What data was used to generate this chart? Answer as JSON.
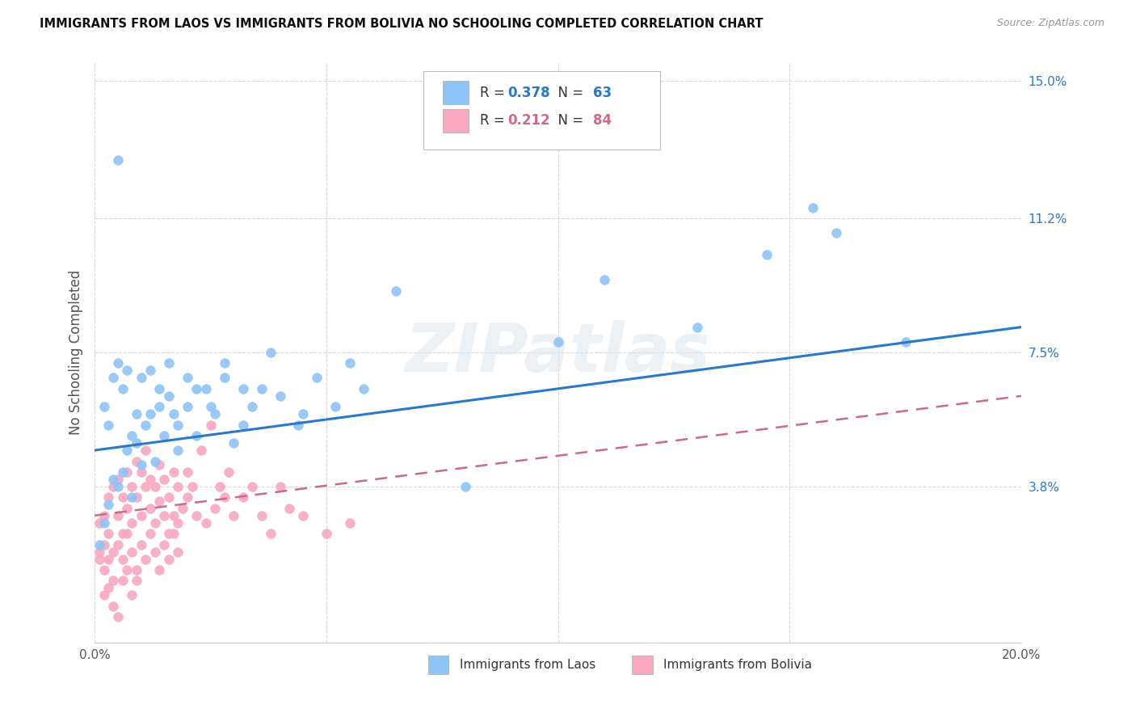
{
  "title": "IMMIGRANTS FROM LAOS VS IMMIGRANTS FROM BOLIVIA NO SCHOOLING COMPLETED CORRELATION CHART",
  "source": "Source: ZipAtlas.com",
  "ylabel": "No Schooling Completed",
  "xlim": [
    0.0,
    0.2
  ],
  "ylim": [
    -0.005,
    0.155
  ],
  "xticks": [
    0.0,
    0.05,
    0.1,
    0.15,
    0.2
  ],
  "xticklabels": [
    "0.0%",
    "",
    "",
    "",
    "20.0%"
  ],
  "ytick_positions": [
    0.038,
    0.075,
    0.112,
    0.15
  ],
  "ytick_labels": [
    "3.8%",
    "7.5%",
    "11.2%",
    "15.0%"
  ],
  "background_color": "#ffffff",
  "grid_color": "#d8d8d8",
  "watermark": "ZIPatlas",
  "laos_color": "#8ec4f8",
  "bolivia_color": "#f9a8c0",
  "laos_line_color": "#2878cc",
  "bolivia_line_color": "#d06888",
  "laos_R": 0.378,
  "laos_N": 63,
  "bolivia_R": 0.212,
  "bolivia_N": 84,
  "laos_line_x": [
    0.0,
    0.2
  ],
  "laos_line_y": [
    0.048,
    0.082
  ],
  "bolivia_line_x": [
    0.0,
    0.2
  ],
  "bolivia_line_y": [
    0.03,
    0.063
  ],
  "laos_scatter_x": [
    0.001,
    0.002,
    0.003,
    0.004,
    0.005,
    0.006,
    0.007,
    0.008,
    0.009,
    0.01,
    0.011,
    0.012,
    0.013,
    0.014,
    0.015,
    0.016,
    0.017,
    0.018,
    0.02,
    0.022,
    0.024,
    0.026,
    0.028,
    0.03,
    0.032,
    0.034,
    0.036,
    0.04,
    0.044,
    0.048,
    0.052,
    0.058,
    0.002,
    0.003,
    0.004,
    0.005,
    0.006,
    0.007,
    0.008,
    0.009,
    0.01,
    0.012,
    0.014,
    0.016,
    0.018,
    0.02,
    0.022,
    0.025,
    0.028,
    0.032,
    0.038,
    0.045,
    0.055,
    0.065,
    0.08,
    0.1,
    0.11,
    0.13,
    0.145,
    0.155,
    0.16,
    0.175,
    0.005
  ],
  "laos_scatter_y": [
    0.022,
    0.028,
    0.033,
    0.04,
    0.038,
    0.042,
    0.048,
    0.035,
    0.05,
    0.044,
    0.055,
    0.058,
    0.045,
    0.06,
    0.052,
    0.063,
    0.058,
    0.048,
    0.06,
    0.052,
    0.065,
    0.058,
    0.068,
    0.05,
    0.055,
    0.06,
    0.065,
    0.063,
    0.055,
    0.068,
    0.06,
    0.065,
    0.06,
    0.055,
    0.068,
    0.072,
    0.065,
    0.07,
    0.052,
    0.058,
    0.068,
    0.07,
    0.065,
    0.072,
    0.055,
    0.068,
    0.065,
    0.06,
    0.072,
    0.065,
    0.075,
    0.058,
    0.072,
    0.092,
    0.038,
    0.078,
    0.095,
    0.082,
    0.102,
    0.115,
    0.108,
    0.078,
    0.128
  ],
  "bolivia_scatter_x": [
    0.001,
    0.001,
    0.002,
    0.002,
    0.003,
    0.003,
    0.004,
    0.004,
    0.005,
    0.005,
    0.006,
    0.006,
    0.007,
    0.007,
    0.008,
    0.008,
    0.009,
    0.009,
    0.01,
    0.01,
    0.011,
    0.011,
    0.012,
    0.012,
    0.013,
    0.013,
    0.014,
    0.014,
    0.015,
    0.015,
    0.016,
    0.016,
    0.017,
    0.017,
    0.018,
    0.018,
    0.019,
    0.02,
    0.02,
    0.021,
    0.022,
    0.023,
    0.024,
    0.025,
    0.026,
    0.027,
    0.028,
    0.029,
    0.03,
    0.032,
    0.034,
    0.036,
    0.038,
    0.04,
    0.042,
    0.045,
    0.05,
    0.055,
    0.002,
    0.003,
    0.004,
    0.005,
    0.006,
    0.007,
    0.008,
    0.009,
    0.001,
    0.002,
    0.003,
    0.004,
    0.005,
    0.006,
    0.007,
    0.008,
    0.009,
    0.01,
    0.011,
    0.012,
    0.013,
    0.014,
    0.015,
    0.016,
    0.017,
    0.018
  ],
  "bolivia_scatter_y": [
    0.028,
    0.018,
    0.022,
    0.03,
    0.025,
    0.035,
    0.02,
    0.038,
    0.03,
    0.04,
    0.025,
    0.035,
    0.032,
    0.042,
    0.028,
    0.038,
    0.035,
    0.045,
    0.03,
    0.042,
    0.038,
    0.048,
    0.032,
    0.04,
    0.028,
    0.038,
    0.034,
    0.044,
    0.03,
    0.04,
    0.025,
    0.035,
    0.03,
    0.042,
    0.028,
    0.038,
    0.032,
    0.035,
    0.042,
    0.038,
    0.03,
    0.048,
    0.028,
    0.055,
    0.032,
    0.038,
    0.035,
    0.042,
    0.03,
    0.035,
    0.038,
    0.03,
    0.025,
    0.038,
    0.032,
    0.03,
    0.025,
    0.028,
    0.008,
    0.01,
    0.005,
    0.002,
    0.012,
    0.015,
    0.008,
    0.012,
    0.02,
    0.015,
    0.018,
    0.012,
    0.022,
    0.018,
    0.025,
    0.02,
    0.015,
    0.022,
    0.018,
    0.025,
    0.02,
    0.015,
    0.022,
    0.018,
    0.025,
    0.02
  ]
}
